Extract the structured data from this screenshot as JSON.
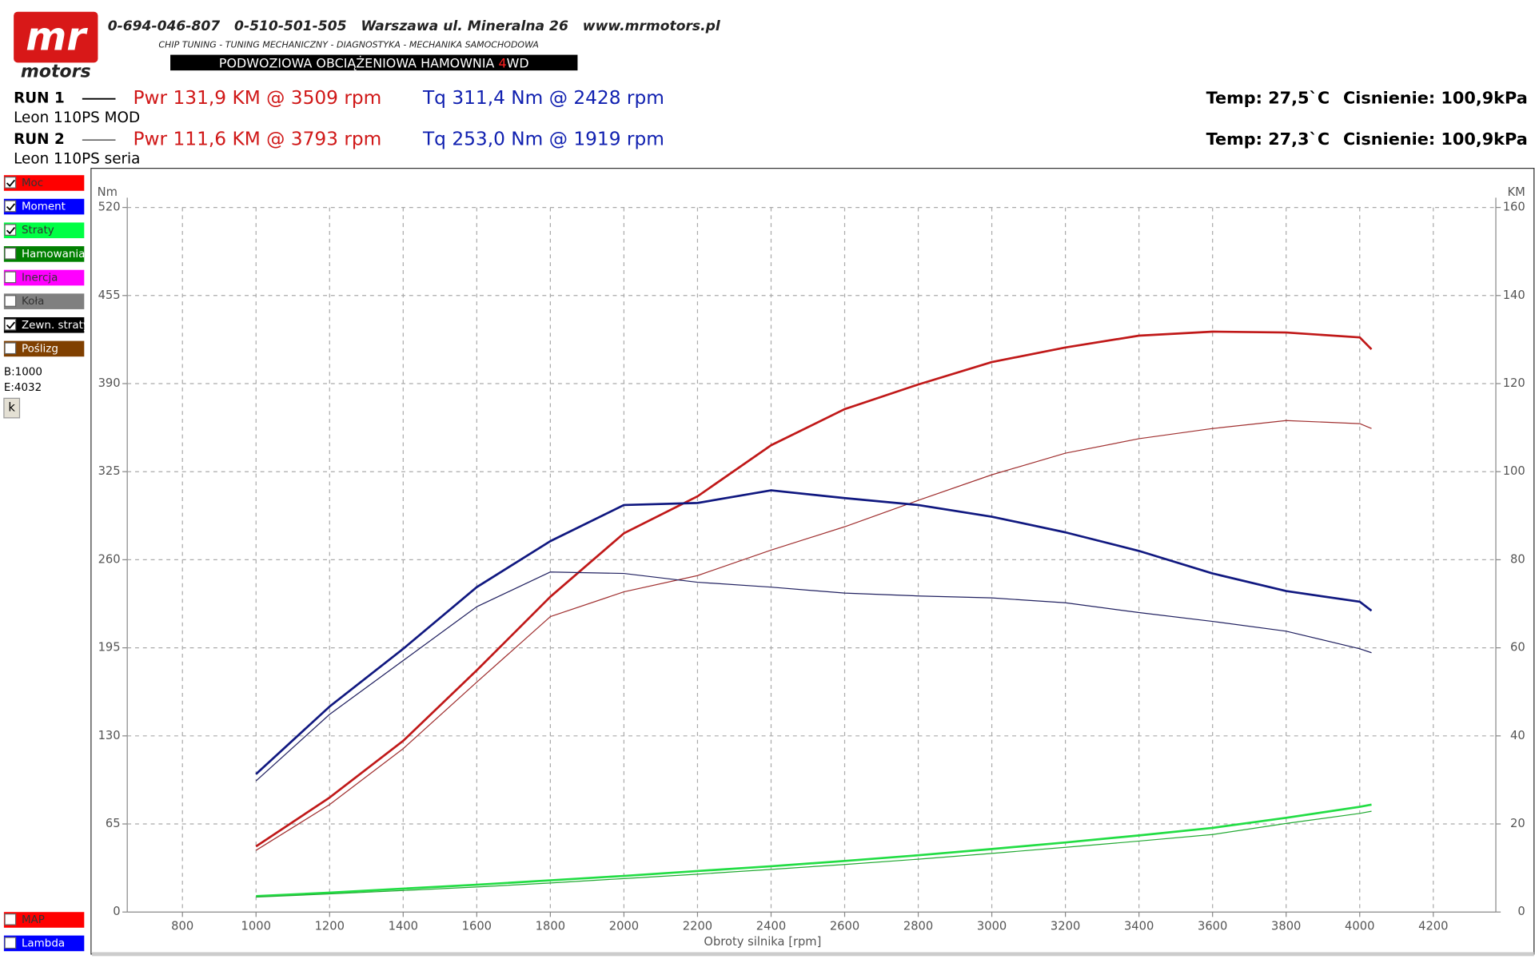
{
  "header": {
    "logo_top": "mr",
    "logo_bottom": "motors",
    "contact": "0-694-046-807   0-510-501-505   Warszawa ul. Mineralna 26   www.mrmotors.pl",
    "services": "CHIP TUNING - TUNING MECHANICZNY - DIAGNOSTYKA - MECHANIKA SAMOCHODOWA",
    "banner": [
      "PODWOZIOWA OBCIĄŻENIOWA HAMOWNIA ",
      "4",
      "WD"
    ]
  },
  "runs": [
    {
      "label": "RUN 1",
      "car": "Leon 110PS MOD",
      "power": "Pwr  131,9 KM @ 3509 rpm",
      "torque": "Tq 311,4 Nm @ 2428 rpm",
      "temp": "Temp: 27,5`C",
      "pressure": "Cisnienie: 100,9kPa"
    },
    {
      "label": "RUN 2",
      "car": "Leon 110PS seria",
      "power": "Pwr  111,6 KM @ 3793 rpm",
      "torque": "Tq 253,0 Nm @ 1919 rpm",
      "temp": "Temp: 27,3`C",
      "pressure": "Cisnienie: 100,9kPa"
    }
  ],
  "sidebar": {
    "items": [
      {
        "label": "Moc",
        "color": "#ff0000",
        "checked": true
      },
      {
        "label": "Moment",
        "color": "#0000ff",
        "checked": true
      },
      {
        "label": "Straty",
        "color": "#00ff44",
        "checked": true
      },
      {
        "label": "Hamowania",
        "color": "#008000",
        "checked": false
      },
      {
        "label": "Inercja",
        "color": "#ff00ff",
        "checked": false
      },
      {
        "label": "Koła",
        "color": "#808080",
        "checked": false
      },
      {
        "label": "Zewn. straty",
        "color": "#000000",
        "checked": true
      },
      {
        "label": "Poślizg",
        "color": "#804000",
        "checked": false
      }
    ],
    "begin": "B:1000",
    "end": "E:4032",
    "button": "k",
    "bottom_items": [
      {
        "label": "MAP",
        "color": "#ff0000",
        "checked": false
      },
      {
        "label": "Lambda",
        "color": "#0000ff",
        "checked": false
      }
    ]
  },
  "chart_data": {
    "type": "line",
    "xlabel": "Obroty silnika [rpm]",
    "ylabel": "Nm",
    "y2label": "KM",
    "grid": true,
    "x": [
      1000,
      1200,
      1400,
      1600,
      1800,
      2000,
      2200,
      2400,
      2600,
      2800,
      3000,
      3200,
      3400,
      3600,
      3800,
      4000,
      4032
    ],
    "xlim": [
      650,
      4370
    ],
    "xticks": [
      800,
      1000,
      1200,
      1400,
      1600,
      1800,
      2000,
      2200,
      2400,
      2600,
      2800,
      3000,
      3200,
      3400,
      3600,
      3800,
      4000,
      4200
    ],
    "ylim": [
      0,
      520
    ],
    "yticks": [
      0,
      65,
      130,
      195,
      260,
      325,
      390,
      455,
      520
    ],
    "y2lim": [
      0,
      160
    ],
    "y2ticks": [
      0,
      20,
      40,
      60,
      80,
      100,
      120,
      140,
      160
    ],
    "series": [
      {
        "color": "#c01818",
        "width": 2.2,
        "axis": "y2",
        "values": [
          14.9,
          26.0,
          38.9,
          54.9,
          71.6,
          86.0,
          94.4,
          106.0,
          114.2,
          119.8,
          124.9,
          128.2,
          130.9,
          131.8,
          131.6,
          130.5,
          127.8
        ]
      },
      {
        "color": "#a03030",
        "width": 1,
        "axis": "y2",
        "values": [
          14.0,
          24.4,
          37.1,
          52.2,
          67.1,
          72.7,
          76.4,
          82.2,
          87.5,
          93.5,
          99.3,
          104.2,
          107.5,
          109.8,
          111.6,
          110.9,
          109.8
        ]
      },
      {
        "color": "#101880",
        "width": 2.2,
        "axis": "y",
        "values": [
          101.8,
          151.7,
          194.3,
          239.8,
          273.7,
          300.4,
          301.9,
          311.2,
          305.5,
          300.4,
          291.8,
          280.2,
          266.5,
          249.9,
          236.9,
          229.0,
          222.4
        ]
      },
      {
        "color": "#202060",
        "width": 1,
        "axis": "y",
        "values": [
          96.8,
          145.9,
          185.6,
          225.3,
          251.0,
          249.9,
          243.4,
          239.8,
          235.4,
          233.3,
          231.8,
          228.2,
          221.0,
          214.5,
          207.3,
          194.3,
          191.4
        ]
      },
      {
        "color": "#22dd44",
        "width": 2.2,
        "axis": "y2",
        "values": [
          3.6,
          4.4,
          5.3,
          6.2,
          7.2,
          8.2,
          9.3,
          10.4,
          11.6,
          12.9,
          14.3,
          15.8,
          17.4,
          19.1,
          21.4,
          23.9,
          24.4
        ]
      },
      {
        "color": "#22aa33",
        "width": 1,
        "axis": "y2",
        "values": [
          3.4,
          4.1,
          4.9,
          5.7,
          6.6,
          7.6,
          8.6,
          9.7,
          10.8,
          12.0,
          13.3,
          14.7,
          16.1,
          17.6,
          20.1,
          22.4,
          22.9
        ]
      }
    ]
  }
}
